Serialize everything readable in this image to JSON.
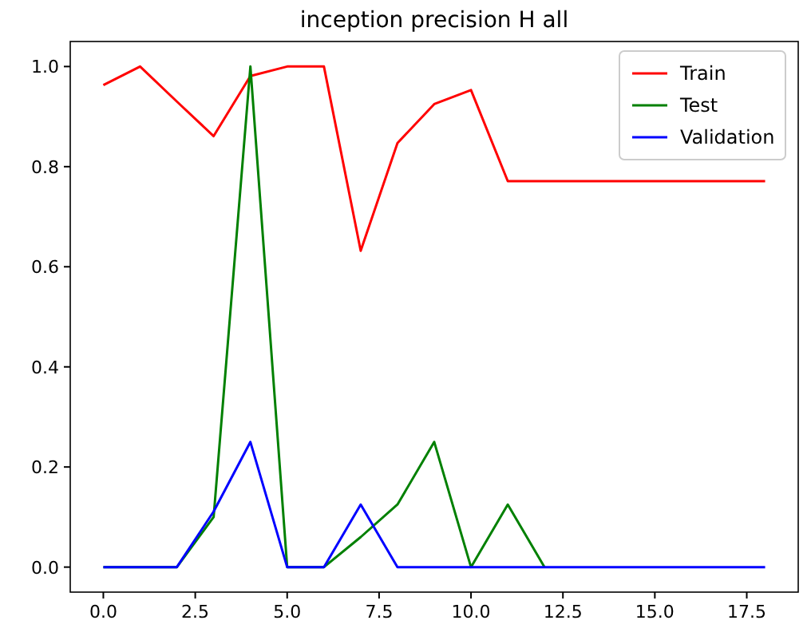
{
  "chart_data": {
    "type": "line",
    "title": "inception precision H all",
    "x": [
      0,
      1,
      2,
      3,
      4,
      5,
      6,
      7,
      8,
      9,
      10,
      11,
      12,
      13,
      14,
      15,
      16,
      17,
      18
    ],
    "series": [
      {
        "name": "Train",
        "color": "#ff0000",
        "values": [
          0.963,
          1.0,
          0.93,
          0.861,
          0.981,
          1.0,
          1.0,
          0.632,
          0.847,
          0.925,
          0.953,
          0.771,
          0.771,
          0.771,
          0.771,
          0.771,
          0.771,
          0.771,
          0.771
        ]
      },
      {
        "name": "Test",
        "color": "#008000",
        "values": [
          0,
          0,
          0,
          0.1,
          1.0,
          0,
          0,
          0.06,
          0.125,
          0.25,
          0,
          0.125,
          0,
          null,
          null,
          null,
          null,
          null,
          null
        ]
      },
      {
        "name": "Validation",
        "color": "#0000ff",
        "values": [
          0,
          0,
          0,
          0.111,
          0.25,
          0,
          0,
          0.125,
          0,
          0,
          0,
          0,
          0,
          0,
          0,
          0,
          0,
          0,
          0
        ]
      }
    ],
    "xlim": [
      -0.9,
      18.9
    ],
    "xticks": [
      {
        "value": 0,
        "label": "0.0"
      },
      {
        "value": 2.5,
        "label": "2.5"
      },
      {
        "value": 5,
        "label": "5.0"
      },
      {
        "value": 7.5,
        "label": "7.5"
      },
      {
        "value": 10,
        "label": "10.0"
      },
      {
        "value": 12.5,
        "label": "12.5"
      },
      {
        "value": 15,
        "label": "15.0"
      },
      {
        "value": 17.5,
        "label": "17.5"
      }
    ],
    "ylim": [
      -0.05,
      1.05
    ],
    "yticks": [
      {
        "value": 0,
        "label": "0.0"
      },
      {
        "value": 0.2,
        "label": "0.2"
      },
      {
        "value": 0.4,
        "label": "0.4"
      },
      {
        "value": 0.6,
        "label": "0.6"
      },
      {
        "value": 0.8,
        "label": "0.8"
      },
      {
        "value": 1,
        "label": "1.0"
      }
    ],
    "grid": false,
    "legend": "top right",
    "marker": "none",
    "line_style": "solid"
  }
}
